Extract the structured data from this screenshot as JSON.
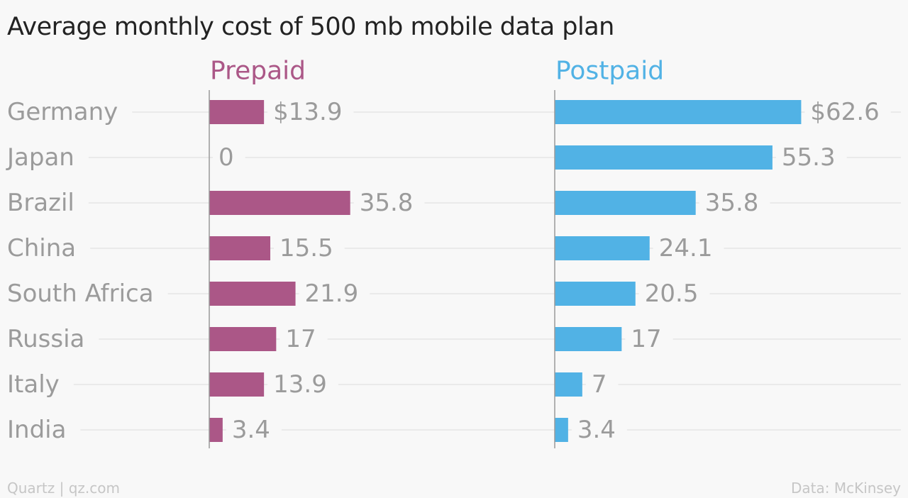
{
  "chart_data": {
    "type": "bar",
    "orientation": "horizontal",
    "title": "Average monthly cost of 500 mb mobile data plan",
    "categories": [
      "Germany",
      "Japan",
      "Brazil",
      "China",
      "South Africa",
      "Russia",
      "Italy",
      "India"
    ],
    "series": [
      {
        "name": "Prepaid",
        "values": [
          13.9,
          0,
          35.8,
          15.5,
          21.9,
          17,
          13.9,
          3.4
        ],
        "labels": [
          "$13.9",
          "0",
          "35.8",
          "15.5",
          "21.9",
          "17",
          "13.9",
          "3.4"
        ]
      },
      {
        "name": "Postpaid",
        "values": [
          62.6,
          55.3,
          35.8,
          24.1,
          20.5,
          17,
          7,
          3.4
        ],
        "labels": [
          "$62.6",
          "55.3",
          "35.8",
          "24.1",
          "20.5",
          "17",
          "7",
          "3.4"
        ]
      }
    ],
    "colors": {
      "Prepaid": "#ab5787",
      "Postpaid": "#51b2e5"
    },
    "grid": true,
    "legend": "panel headers above each bar group"
  },
  "footer": {
    "left": "Quartz | qz.com",
    "right": "Data: McKinsey"
  }
}
